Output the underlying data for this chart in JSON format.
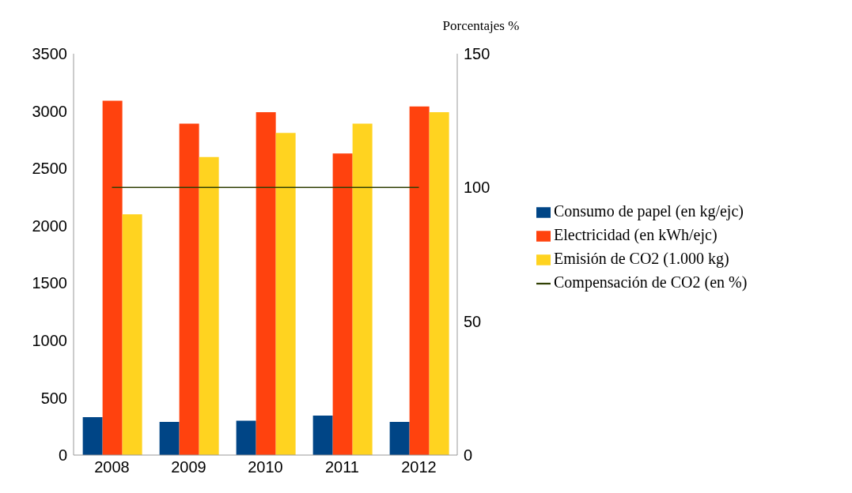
{
  "chart_data": {
    "type": "bar",
    "categories": [
      "2008",
      "2009",
      "2010",
      "2011",
      "2012"
    ],
    "series": [
      {
        "name": "Consumo de papel (en kg/ejc)",
        "color": "#004586",
        "values": [
          330,
          290,
          300,
          345,
          290
        ]
      },
      {
        "name": "Electricidad (en kWh/ejc)",
        "color": "#ff420e",
        "values": [
          3090,
          2890,
          2990,
          2630,
          3040
        ]
      },
      {
        "name": "Emisión de CO2 (1.000 kg)",
        "color": "#ffd320",
        "values": [
          2100,
          2600,
          2810,
          2890,
          2990
        ]
      },
      {
        "name": "Compensación de CO2 (en %)",
        "color": "#314004",
        "type": "line",
        "axis": "y2",
        "values": [
          100,
          100,
          100,
          100,
          100
        ]
      }
    ],
    "ylim": [
      0,
      3500
    ],
    "yticks": [
      0,
      500,
      1000,
      1500,
      2000,
      2500,
      3000,
      3500
    ],
    "y2lim": [
      0,
      150
    ],
    "y2ticks": [
      0,
      50,
      100,
      150
    ],
    "y2label": "Porcentajes %",
    "grid": false,
    "legend": "right",
    "marker": "none",
    "line_style": "solid"
  }
}
